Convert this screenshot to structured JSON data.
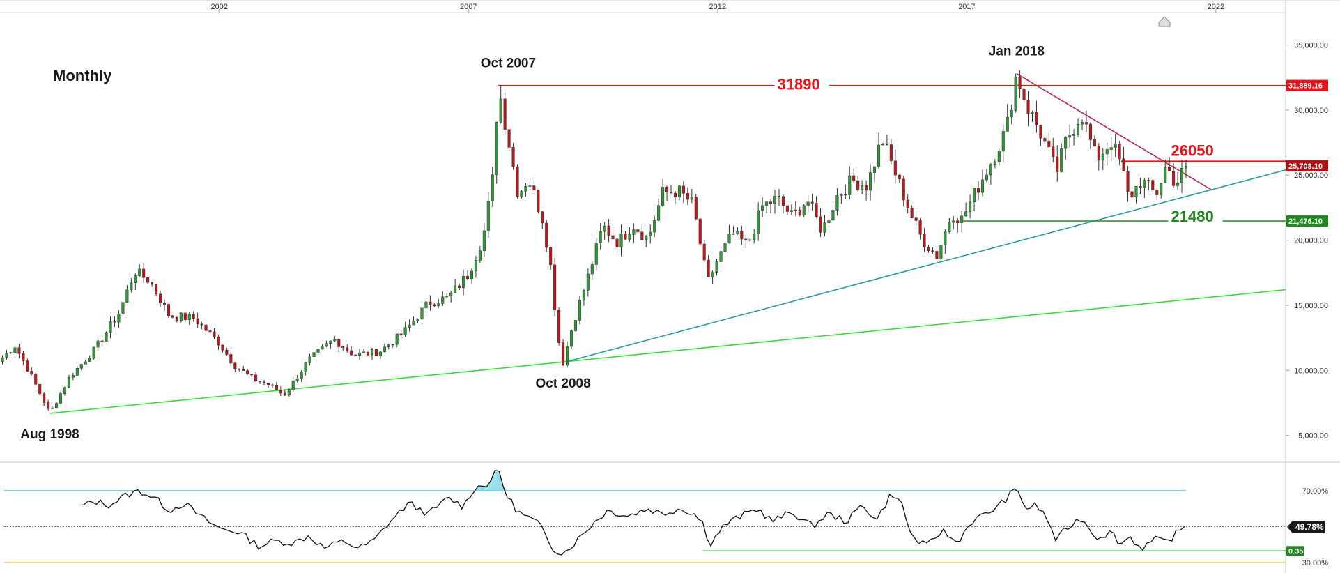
{
  "chart_data": [
    {
      "type": "candlestick",
      "title": "Monthly",
      "x_tick_labels": [
        "2002",
        "2007",
        "2012",
        "2017",
        "2022"
      ],
      "x_ticks": [
        2002,
        2007,
        2012,
        2017,
        2022
      ],
      "xlim": [
        1997.6,
        2023.4
      ],
      "y_tick_labels": [
        "35,000.00",
        "30,000.00",
        "25,000.00",
        "20,000.00",
        "15,000.00",
        "10,000.00",
        "5,000.00"
      ],
      "y_ticks": [
        35000,
        30000,
        25000,
        20000,
        15000,
        10000,
        5000
      ],
      "ylim": [
        3000,
        37600
      ],
      "grid": false,
      "price_path": [
        [
          1997.6,
          10800
        ],
        [
          1997.9,
          11900
        ],
        [
          1998.2,
          9800
        ],
        [
          1998.6,
          6700
        ],
        [
          1999.0,
          9500
        ],
        [
          1999.5,
          11600
        ],
        [
          2000.0,
          14500
        ],
        [
          2000.3,
          17600
        ],
        [
          2000.6,
          16900
        ],
        [
          2001.0,
          14200
        ],
        [
          2001.5,
          14000
        ],
        [
          2002.0,
          12100
        ],
        [
          2002.3,
          10400
        ],
        [
          2002.7,
          9300
        ],
        [
          2003.0,
          8900
        ],
        [
          2003.3,
          8100
        ],
        [
          2003.8,
          10800
        ],
        [
          2004.3,
          12400
        ],
        [
          2004.7,
          11200
        ],
        [
          2005.2,
          11400
        ],
        [
          2005.7,
          12900
        ],
        [
          2006.2,
          15200
        ],
        [
          2006.6,
          15600
        ],
        [
          2007.0,
          17400
        ],
        [
          2007.3,
          20300
        ],
        [
          2007.5,
          25000
        ],
        [
          2007.6,
          31890
        ],
        [
          2007.8,
          27800
        ],
        [
          2008.0,
          23500
        ],
        [
          2008.2,
          24800
        ],
        [
          2008.5,
          21500
        ],
        [
          2008.65,
          18000
        ],
        [
          2008.8,
          12500
        ],
        [
          2008.9,
          10600
        ],
        [
          2009.1,
          13600
        ],
        [
          2009.4,
          17200
        ],
        [
          2009.7,
          21100
        ],
        [
          2010.0,
          19800
        ],
        [
          2010.3,
          21200
        ],
        [
          2010.6,
          20100
        ],
        [
          2010.9,
          23600
        ],
        [
          2011.2,
          23800
        ],
        [
          2011.5,
          22800
        ],
        [
          2011.8,
          16700
        ],
        [
          2012.0,
          18500
        ],
        [
          2012.3,
          20500
        ],
        [
          2012.6,
          19600
        ],
        [
          2012.9,
          22600
        ],
        [
          2013.2,
          23200
        ],
        [
          2013.5,
          21800
        ],
        [
          2013.8,
          23100
        ],
        [
          2014.1,
          20700
        ],
        [
          2014.4,
          23400
        ],
        [
          2014.7,
          24600
        ],
        [
          2015.0,
          24200
        ],
        [
          2015.3,
          27800
        ],
        [
          2015.6,
          24800
        ],
        [
          2015.9,
          21800
        ],
        [
          2016.1,
          20100
        ],
        [
          2016.4,
          18800
        ],
        [
          2016.7,
          22100
        ],
        [
          2016.9,
          21600
        ],
        [
          2017.2,
          23900
        ],
        [
          2017.5,
          26100
        ],
        [
          2017.8,
          28600
        ],
        [
          2018.0,
          32800
        ],
        [
          2018.2,
          30400
        ],
        [
          2018.5,
          28100
        ],
        [
          2018.8,
          25200
        ],
        [
          2019.0,
          27700
        ],
        [
          2019.3,
          29800
        ],
        [
          2019.6,
          26200
        ],
        [
          2019.9,
          27600
        ],
        [
          2020.1,
          25800
        ],
        [
          2020.25,
          23200
        ],
        [
          2020.5,
          24600
        ],
        [
          2020.8,
          23500
        ],
        [
          2021.0,
          25700
        ],
        [
          2021.2,
          24300
        ],
        [
          2021.4,
          25708
        ]
      ],
      "levels": [
        {
          "label": "31890",
          "value": 31889.16,
          "tag": "31,889.16",
          "color": "#e8141a"
        },
        {
          "label": "26050",
          "value": 26050,
          "tag": "25,708.10",
          "tag_value": 25708.1,
          "color": "#e8141a"
        },
        {
          "label": "21480",
          "value": 21476.1,
          "tag": "21,476.10",
          "color": "#1e8a1e"
        }
      ],
      "trendlines": [
        {
          "name": "long-term support",
          "color": "#33dd33",
          "from": [
            1998.6,
            6700
          ],
          "to": [
            2023.4,
            16200
          ]
        },
        {
          "name": "rising support",
          "color": "#2a9aa8",
          "from": [
            2008.9,
            10600
          ],
          "to": [
            2023.4,
            25400
          ]
        },
        {
          "name": "falling resistance",
          "color": "#c8244a",
          "from": [
            2018.0,
            32800
          ],
          "to": [
            2021.9,
            23900
          ]
        }
      ],
      "annotations": [
        {
          "text": "Aug 1998",
          "x": 1998.6,
          "y": 6700,
          "pos": "below"
        },
        {
          "text": "Oct 2007",
          "x": 2007.8,
          "y": 31890,
          "pos": "above"
        },
        {
          "text": "Oct 2008",
          "x": 2008.9,
          "y": 10600,
          "pos": "below"
        },
        {
          "text": "Jan 2018",
          "x": 2018.0,
          "y": 32800,
          "pos": "above"
        }
      ]
    },
    {
      "type": "line",
      "title": "",
      "ylim": [
        25,
        85
      ],
      "y_tick_labels": [
        "70.00%",
        "30.00%"
      ],
      "y_ticks": [
        70,
        30
      ],
      "overbought": 70,
      "midline": 50,
      "oversold": 30,
      "value_tag": "49.78%",
      "support_tag": "0.35",
      "support_level": 36.5,
      "rsi_path": [
        [
          1999.2,
          61
        ],
        [
          1999.5,
          64
        ],
        [
          1999.8,
          62
        ],
        [
          2000.1,
          67
        ],
        [
          2000.4,
          70
        ],
        [
          2000.7,
          66
        ],
        [
          2001.0,
          59
        ],
        [
          2001.3,
          63
        ],
        [
          2001.6,
          56
        ],
        [
          2002.0,
          49
        ],
        [
          2002.4,
          47
        ],
        [
          2002.8,
          39
        ],
        [
          2003.1,
          42
        ],
        [
          2003.5,
          41
        ],
        [
          2003.8,
          45
        ],
        [
          2004.1,
          38
        ],
        [
          2004.5,
          42
        ],
        [
          2004.8,
          38
        ],
        [
          2005.1,
          42
        ],
        [
          2005.4,
          52
        ],
        [
          2005.8,
          63
        ],
        [
          2006.2,
          57
        ],
        [
          2006.6,
          66
        ],
        [
          2006.9,
          61
        ],
        [
          2007.1,
          71
        ],
        [
          2007.4,
          74
        ],
        [
          2007.6,
          82
        ],
        [
          2007.75,
          68
        ],
        [
          2008.0,
          58
        ],
        [
          2008.4,
          52
        ],
        [
          2008.7,
          38
        ],
        [
          2008.9,
          35
        ],
        [
          2009.2,
          43
        ],
        [
          2009.5,
          52
        ],
        [
          2009.8,
          59
        ],
        [
          2010.2,
          56
        ],
        [
          2010.6,
          60
        ],
        [
          2010.9,
          57
        ],
        [
          2011.2,
          60
        ],
        [
          2011.5,
          58
        ],
        [
          2011.7,
          52
        ],
        [
          2011.85,
          40
        ],
        [
          2012.1,
          50
        ],
        [
          2012.4,
          55
        ],
        [
          2012.8,
          60
        ],
        [
          2013.1,
          53
        ],
        [
          2013.5,
          58
        ],
        [
          2013.9,
          50
        ],
        [
          2014.2,
          57
        ],
        [
          2014.6,
          53
        ],
        [
          2014.9,
          62
        ],
        [
          2015.2,
          54
        ],
        [
          2015.5,
          69
        ],
        [
          2015.7,
          62
        ],
        [
          2015.9,
          44
        ],
        [
          2016.2,
          39
        ],
        [
          2016.5,
          48
        ],
        [
          2016.8,
          41
        ],
        [
          2017.1,
          53
        ],
        [
          2017.4,
          57
        ],
        [
          2017.7,
          63
        ],
        [
          2018.0,
          71
        ],
        [
          2018.2,
          60
        ],
        [
          2018.4,
          62
        ],
        [
          2018.6,
          55
        ],
        [
          2018.8,
          42
        ],
        [
          2019.0,
          49
        ],
        [
          2019.3,
          55
        ],
        [
          2019.6,
          44
        ],
        [
          2019.9,
          47
        ],
        [
          2020.1,
          40
        ],
        [
          2020.25,
          45
        ],
        [
          2020.5,
          38
        ],
        [
          2020.8,
          43
        ],
        [
          2021.0,
          41
        ],
        [
          2021.2,
          46
        ],
        [
          2021.4,
          49.78
        ]
      ],
      "overbought_fill_ranges": [
        [
          2007.1,
          2007.8
        ],
        [
          2018.0,
          2018.1
        ]
      ]
    }
  ],
  "colors": {
    "up_candle": "#2e9a35",
    "down_candle": "#c0151b",
    "level_red": "#e8141a",
    "level_green": "#1e8a1e",
    "rsi_overbought": "#7ed6e6",
    "rsi_oversold": "#f2b44a"
  }
}
